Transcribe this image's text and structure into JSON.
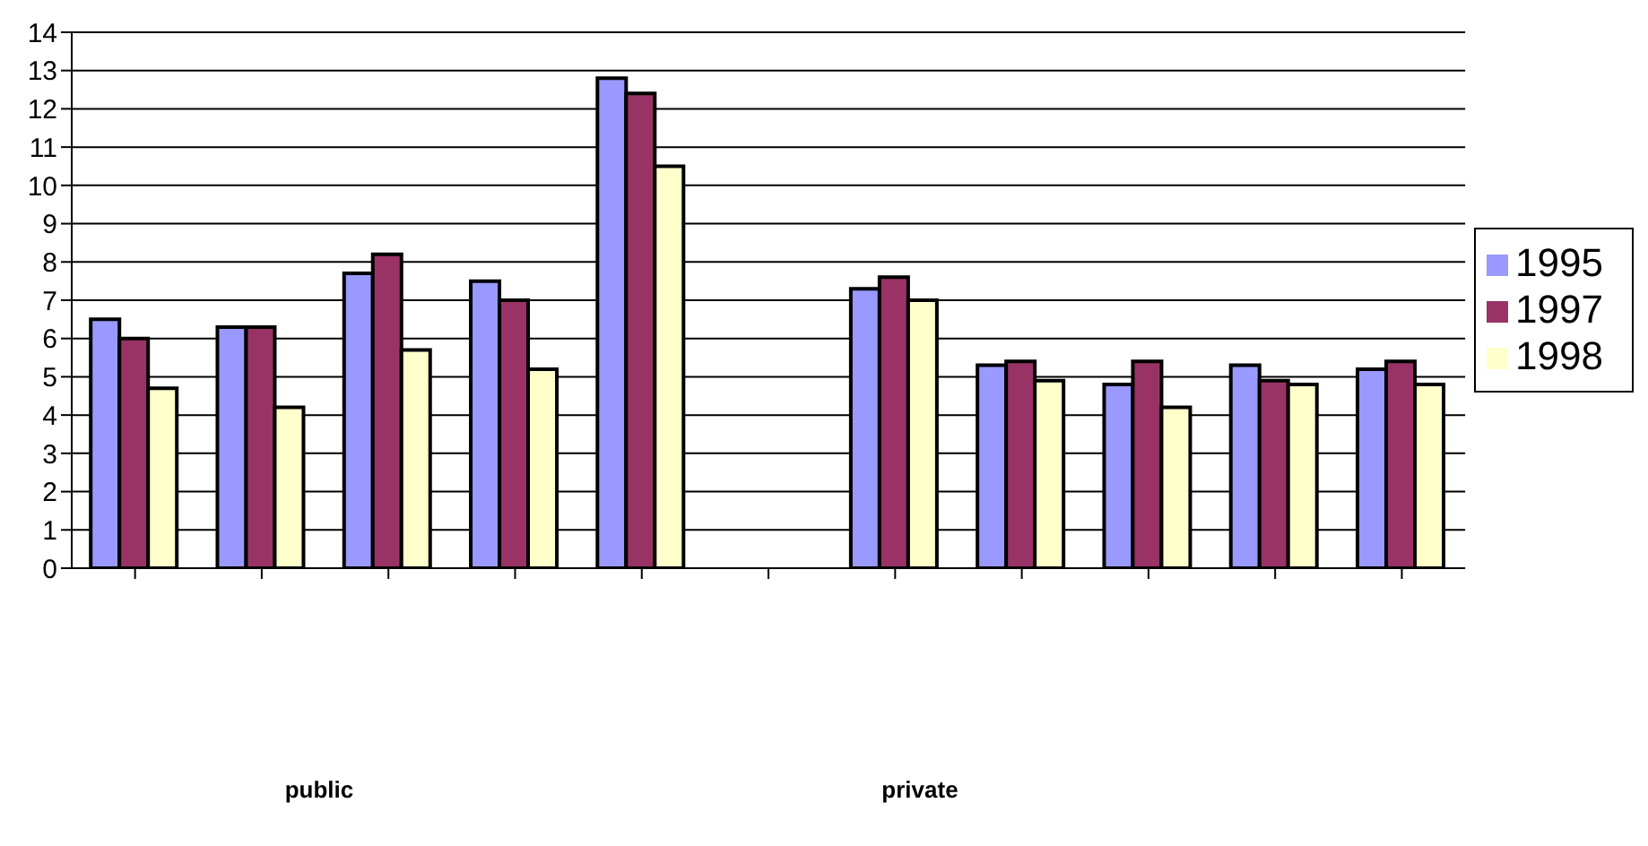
{
  "chart_data": {
    "type": "bar",
    "categories": [
      null,
      null,
      null,
      null,
      null,
      null,
      null,
      null,
      null,
      null,
      null
    ],
    "series": [
      {
        "name": "1995",
        "color": "#9999ff",
        "values": [
          6.5,
          6.3,
          7.7,
          7.5,
          12.8,
          null,
          7.3,
          5.3,
          4.8,
          5.3,
          5.2
        ]
      },
      {
        "name": "1997",
        "color": "#993366",
        "values": [
          6.0,
          6.3,
          8.2,
          7.0,
          12.4,
          null,
          7.6,
          5.4,
          5.4,
          4.9,
          5.4
        ]
      },
      {
        "name": "1998",
        "color": "#ffffcc",
        "values": [
          4.7,
          4.2,
          5.7,
          5.2,
          10.5,
          null,
          7.0,
          4.9,
          4.2,
          4.8,
          4.8
        ]
      }
    ],
    "ylim": [
      0,
      14
    ],
    "yticks": [
      0,
      1,
      2,
      3,
      4,
      5,
      6,
      7,
      8,
      9,
      10,
      11,
      12,
      13,
      14
    ],
    "grid": "y",
    "legend": "right",
    "annotations": [
      "public",
      "private"
    ]
  }
}
